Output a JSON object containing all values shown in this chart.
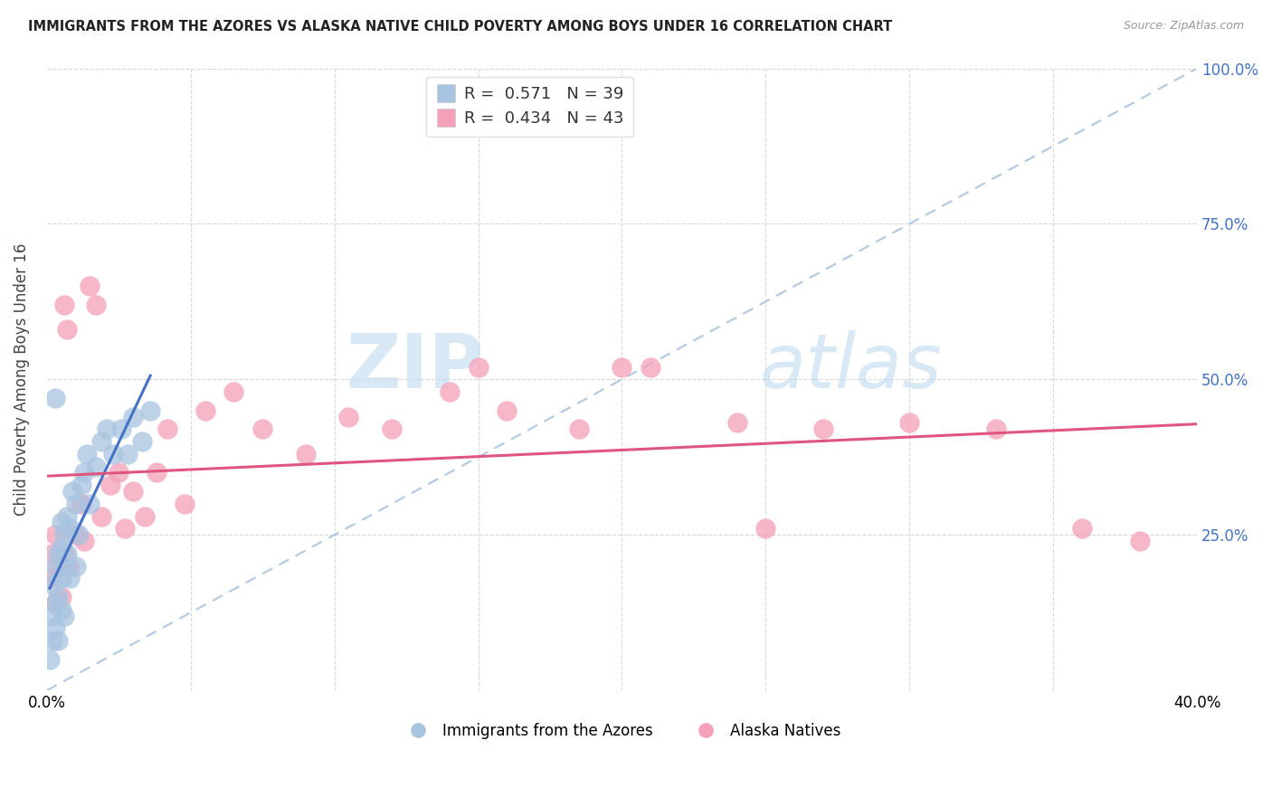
{
  "title": "IMMIGRANTS FROM THE AZORES VS ALASKA NATIVE CHILD POVERTY AMONG BOYS UNDER 16 CORRELATION CHART",
  "source": "Source: ZipAtlas.com",
  "ylabel": "Child Poverty Among Boys Under 16",
  "legend_label1": "R =  0.571   N = 39",
  "legend_label2": "R =  0.434   N = 43",
  "legend_r1": "0.571",
  "legend_r2": "0.434",
  "legend_n1": "39",
  "legend_n2": "43",
  "legend_group1": "Immigrants from the Azores",
  "legend_group2": "Alaska Natives",
  "r1": 0.571,
  "n1": 39,
  "r2": 0.434,
  "n2": 43,
  "color1": "#a8c4e0",
  "color2": "#f4a0b8",
  "line_color1": "#4472c4",
  "line_color2": "#e05580",
  "diag_color": "#b0c8e0",
  "watermark_color": "#c8dff0",
  "background_color": "#ffffff",
  "grid_color": "#d8d8d8",
  "blue_scatter_x": [
    0.001,
    0.002,
    0.002,
    0.002,
    0.003,
    0.003,
    0.003,
    0.004,
    0.004,
    0.004,
    0.005,
    0.005,
    0.005,
    0.005,
    0.006,
    0.006,
    0.006,
    0.007,
    0.007,
    0.008,
    0.008,
    0.009,
    0.01,
    0.01,
    0.011,
    0.012,
    0.013,
    0.014,
    0.015,
    0.017,
    0.019,
    0.021,
    0.023,
    0.026,
    0.028,
    0.03,
    0.033,
    0.036,
    0.003
  ],
  "blue_scatter_y": [
    0.05,
    0.08,
    0.12,
    0.17,
    0.1,
    0.14,
    0.2,
    0.08,
    0.15,
    0.22,
    0.13,
    0.18,
    0.23,
    0.27,
    0.12,
    0.2,
    0.25,
    0.22,
    0.28,
    0.18,
    0.26,
    0.32,
    0.2,
    0.3,
    0.25,
    0.33,
    0.35,
    0.38,
    0.3,
    0.36,
    0.4,
    0.42,
    0.38,
    0.42,
    0.38,
    0.44,
    0.4,
    0.45,
    0.47
  ],
  "pink_scatter_x": [
    0.001,
    0.002,
    0.003,
    0.003,
    0.004,
    0.005,
    0.006,
    0.006,
    0.007,
    0.008,
    0.01,
    0.012,
    0.013,
    0.015,
    0.017,
    0.019,
    0.022,
    0.025,
    0.027,
    0.03,
    0.034,
    0.038,
    0.042,
    0.048,
    0.055,
    0.065,
    0.075,
    0.09,
    0.105,
    0.12,
    0.14,
    0.16,
    0.185,
    0.21,
    0.24,
    0.27,
    0.3,
    0.33,
    0.36,
    0.15,
    0.2,
    0.25,
    0.38
  ],
  "pink_scatter_y": [
    0.18,
    0.22,
    0.14,
    0.25,
    0.2,
    0.15,
    0.62,
    0.22,
    0.58,
    0.2,
    0.25,
    0.3,
    0.24,
    0.65,
    0.62,
    0.28,
    0.33,
    0.35,
    0.26,
    0.32,
    0.28,
    0.35,
    0.42,
    0.3,
    0.45,
    0.48,
    0.42,
    0.38,
    0.44,
    0.42,
    0.48,
    0.45,
    0.42,
    0.52,
    0.43,
    0.42,
    0.43,
    0.42,
    0.26,
    0.52,
    0.52,
    0.26,
    0.24
  ],
  "xlim": [
    0,
    0.4
  ],
  "ylim": [
    0,
    1.0
  ],
  "xright_label": "40.0%",
  "xleft_label": "0.0%"
}
